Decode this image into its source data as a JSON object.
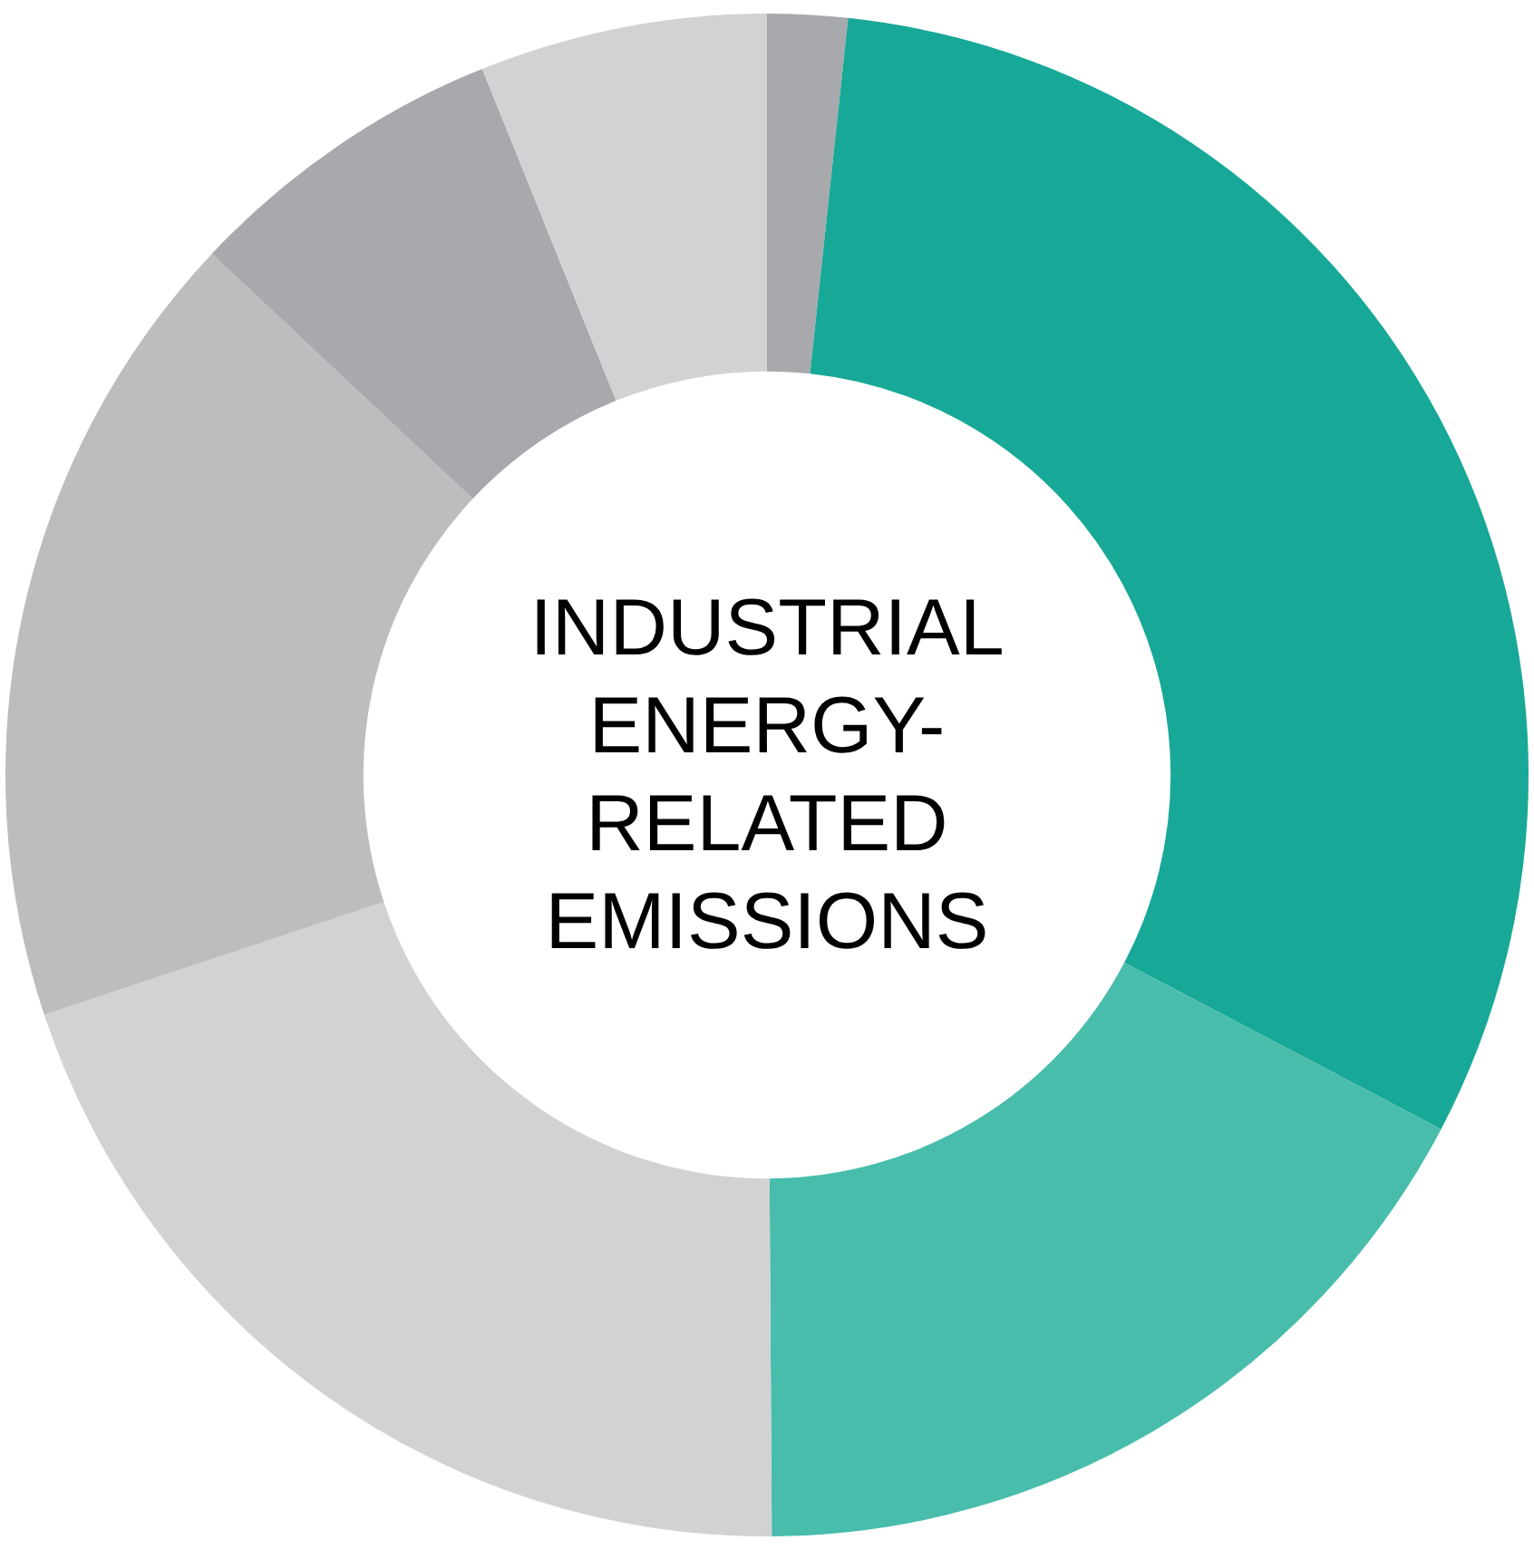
{
  "chart_data": {
    "type": "donut",
    "title": "INDUSTRIAL ENERGY-RELATED EMISSIONS",
    "categories": [
      null,
      null,
      null,
      null,
      null,
      null,
      null
    ],
    "values": [
      1.7,
      31.0,
      17.2,
      20.0,
      17.1,
      6.9,
      6.1
    ],
    "colors": [
      "#a7a9ac",
      "#17a897",
      "#48bdab",
      "#d1d2d4",
      "#bcbdbf",
      "#a7a9ac",
      "#d1d2d4"
    ],
    "legend": false
  }
}
